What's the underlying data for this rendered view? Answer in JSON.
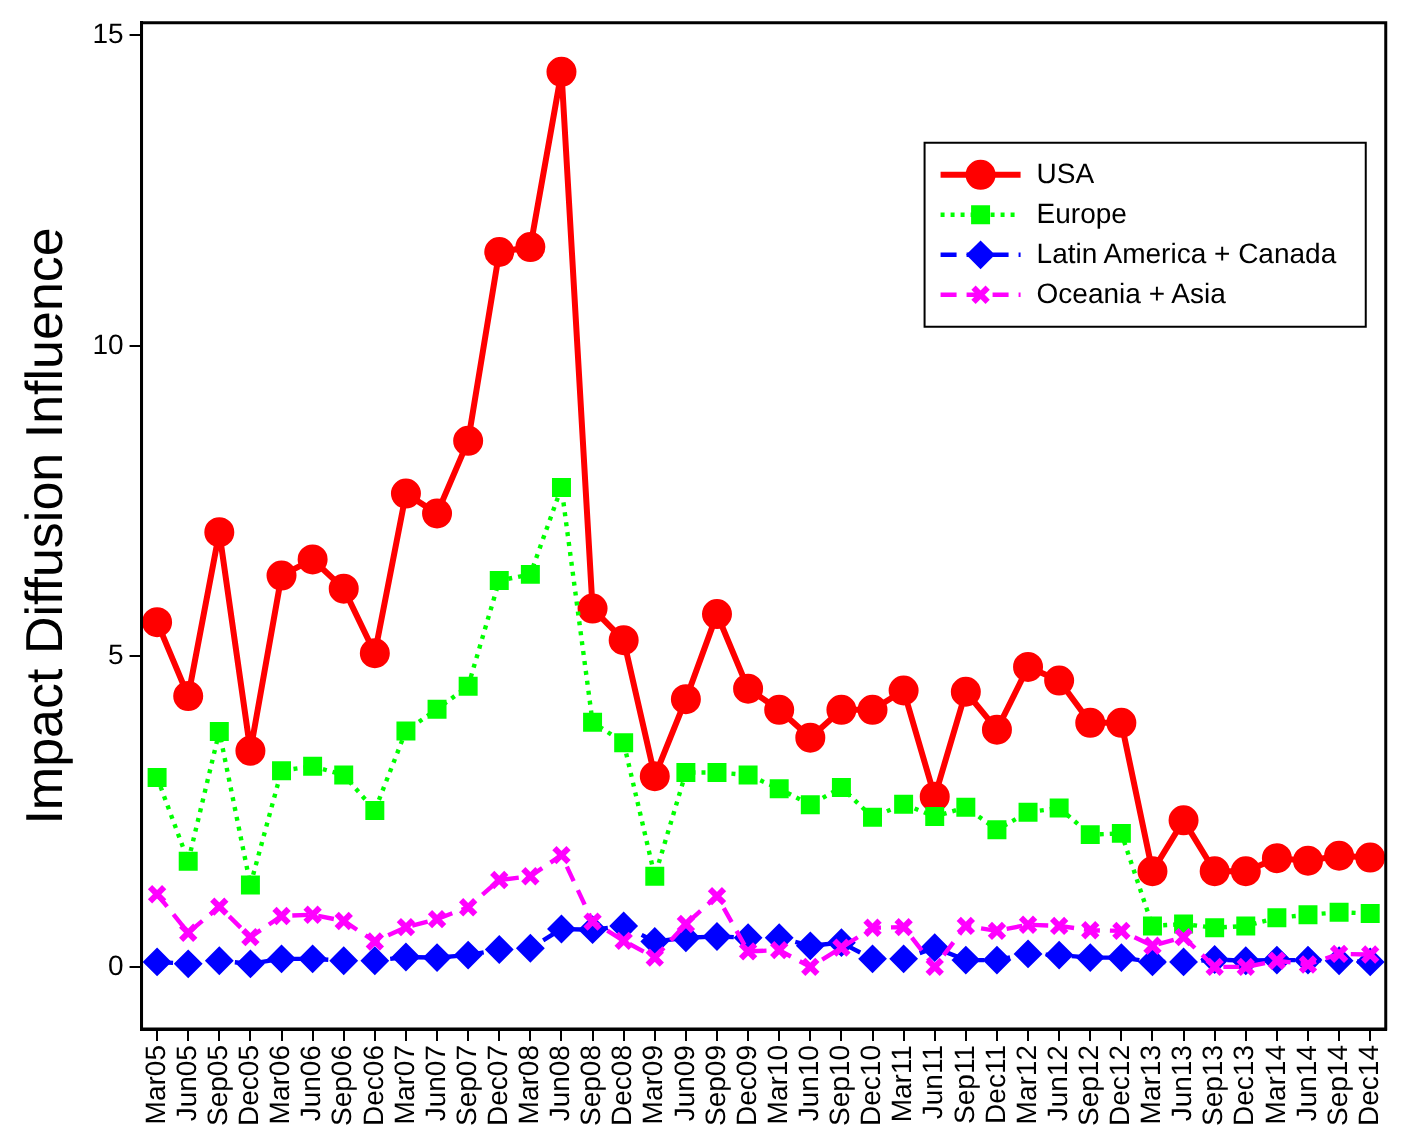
{
  "chart_data": {
    "type": "line",
    "ylabel": "Impact Diffusion Influence",
    "categories": [
      "Mar05",
      "Jun05",
      "Sep05",
      "Dec05",
      "Mar06",
      "Jun06",
      "Sep06",
      "Dec06",
      "Mar07",
      "Jun07",
      "Sep07",
      "Dec07",
      "Mar08",
      "Jun08",
      "Sep08",
      "Dec08",
      "Mar09",
      "Jun09",
      "Sep09",
      "Dec09",
      "Mar10",
      "Jun10",
      "Sep10",
      "Dec10",
      "Mar11",
      "Jun11",
      "Sep11",
      "Dec11",
      "Mar12",
      "Jun12",
      "Sep12",
      "Dec12",
      "Mar13",
      "Jun13",
      "Sep13",
      "Dec13",
      "Mar14",
      "Jun14",
      "Sep14",
      "Dec14"
    ],
    "series": [
      {
        "name": "USA",
        "color": "#ff0000",
        "marker": "circle",
        "line_style": "solid",
        "values": [
          5.55,
          4.36,
          7.0,
          3.48,
          6.3,
          6.56,
          6.09,
          5.05,
          7.62,
          7.3,
          8.47,
          11.51,
          11.59,
          14.41,
          5.77,
          5.26,
          3.07,
          4.31,
          5.68,
          4.48,
          4.14,
          3.69,
          4.14,
          4.14,
          4.45,
          2.74,
          4.43,
          3.82,
          4.83,
          4.61,
          3.93,
          3.93,
          1.54,
          2.36,
          1.54,
          1.54,
          1.75,
          1.71,
          1.79,
          1.76
        ]
      },
      {
        "name": "Europe",
        "color": "#00ff00",
        "marker": "square",
        "line_style": "dotted",
        "values": [
          3.05,
          1.7,
          3.79,
          1.32,
          3.16,
          3.23,
          3.09,
          2.52,
          3.8,
          4.15,
          4.52,
          6.22,
          6.32,
          7.72,
          3.94,
          3.61,
          1.46,
          3.13,
          3.13,
          3.09,
          2.87,
          2.61,
          2.89,
          2.41,
          2.62,
          2.42,
          2.57,
          2.21,
          2.49,
          2.56,
          2.13,
          2.15,
          0.66,
          0.69,
          0.63,
          0.66,
          0.79,
          0.84,
          0.88,
          0.86
        ]
      },
      {
        "name": "Latin America + Canada",
        "color": "#0000ff",
        "marker": "diamond",
        "line_style": "dashed",
        "values": [
          0.08,
          0.05,
          0.1,
          0.05,
          0.13,
          0.13,
          0.1,
          0.1,
          0.16,
          0.15,
          0.19,
          0.28,
          0.3,
          0.61,
          0.6,
          0.66,
          0.41,
          0.47,
          0.49,
          0.47,
          0.47,
          0.34,
          0.39,
          0.13,
          0.13,
          0.31,
          0.11,
          0.11,
          0.21,
          0.19,
          0.15,
          0.15,
          0.08,
          0.08,
          0.12,
          0.1,
          0.11,
          0.11,
          0.1,
          0.08
        ]
      },
      {
        "name": "Oceania + Asia",
        "color": "#ff00ff",
        "marker": "cross",
        "line_style": "dashed",
        "values": [
          1.17,
          0.55,
          0.97,
          0.48,
          0.82,
          0.84,
          0.74,
          0.41,
          0.64,
          0.77,
          0.96,
          1.4,
          1.46,
          1.8,
          0.73,
          0.42,
          0.15,
          0.69,
          1.14,
          0.25,
          0.27,
          0.0,
          0.31,
          0.63,
          0.64,
          0.0,
          0.66,
          0.58,
          0.68,
          0.66,
          0.59,
          0.58,
          0.34,
          0.48,
          0.0,
          0.0,
          0.1,
          0.04,
          0.21,
          0.2
        ]
      }
    ],
    "ylim": [
      -1,
      15.2
    ],
    "yticks": [
      0,
      5,
      10,
      15
    ],
    "grid": false,
    "legend": "top right"
  }
}
